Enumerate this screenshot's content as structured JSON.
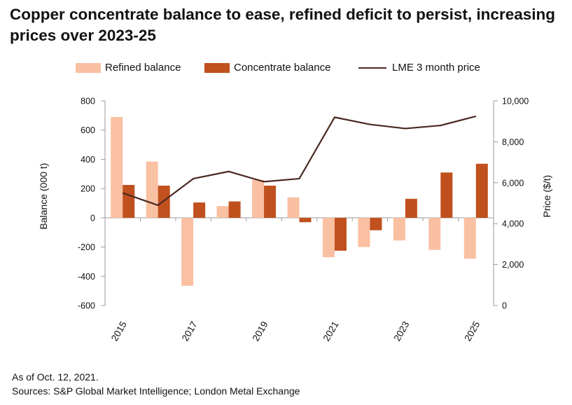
{
  "title": "Copper concentrate balance to ease, refined deficit to persist, increasing prices over 2023-25",
  "footer": {
    "as_of": "As of Oct. 12, 2021.",
    "sources": "Sources: S&P Global Market Intelligence; London Metal Exchange"
  },
  "colors": {
    "refined": "#f9c0a2",
    "concentrate": "#c0501e",
    "price_line": "#4a2a22",
    "axis": "#9a9a9a"
  },
  "chart_data": {
    "type": "bar",
    "title": "Copper concentrate balance to ease, refined deficit to persist, increasing prices over 2023-25",
    "categories": [
      "2015",
      "2016",
      "2017",
      "2018",
      "2019",
      "2020",
      "2021",
      "2022",
      "2023",
      "2024",
      "2025"
    ],
    "tick_labels": [
      "2015",
      "2017",
      "2019",
      "2021",
      "2023",
      "2025"
    ],
    "series": [
      {
        "name": "Refined balance",
        "type": "bar",
        "axis": "left",
        "values": [
          690,
          385,
          -465,
          80,
          260,
          140,
          -270,
          -200,
          -155,
          -220,
          -280
        ]
      },
      {
        "name": "Concentrate balance",
        "type": "bar",
        "axis": "left",
        "values": [
          225,
          220,
          105,
          112,
          220,
          -30,
          -225,
          -85,
          130,
          310,
          370
        ]
      },
      {
        "name": "LME 3 month price",
        "type": "line",
        "axis": "right",
        "values": [
          5500,
          4900,
          6200,
          6550,
          6050,
          6200,
          9200,
          8850,
          8650,
          8800,
          9250
        ]
      }
    ],
    "ylabel": "Balance (000 t)",
    "ylabel_right": "Price ($/t)",
    "ylim": [
      -600,
      800
    ],
    "yticks": [
      -600,
      -400,
      -200,
      0,
      200,
      400,
      600,
      800
    ],
    "ytick_labels": [
      "-600",
      "-400",
      "-200",
      "0",
      "200",
      "400",
      "600",
      "800"
    ],
    "ylim_right": [
      0,
      10000
    ],
    "yticks_right": [
      0,
      2000,
      4000,
      6000,
      8000,
      10000
    ],
    "ytick_labels_right": [
      "0",
      "2,000",
      "4,000",
      "6,000",
      "8,000",
      "10,000"
    ],
    "legend": [
      "Refined balance",
      "Concentrate balance",
      "LME 3 month price"
    ],
    "legend_position": "top",
    "grid": false
  }
}
